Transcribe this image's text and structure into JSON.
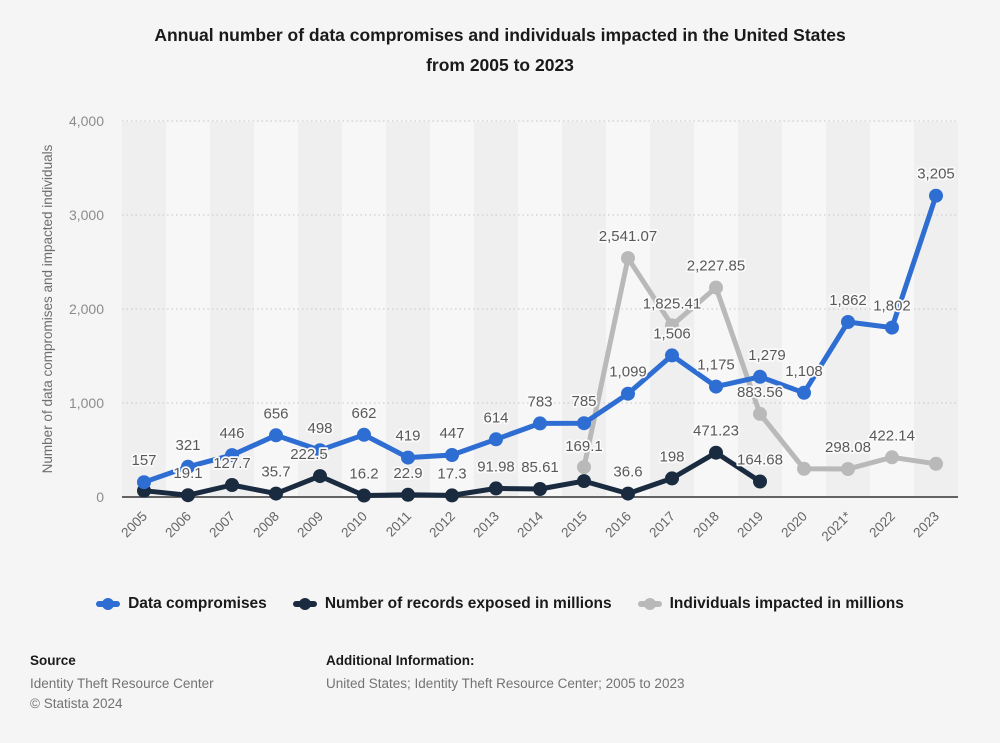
{
  "title": {
    "line1": "Annual number of data compromises and individuals impacted in the United States",
    "line2": "from 2005 to 2023"
  },
  "y_axis": {
    "label": "Number of data compromises and impacted individuals",
    "ticks": [
      "4,000",
      "3,000",
      "2,000",
      "1,000",
      "0"
    ]
  },
  "x_axis": {
    "categories": [
      "2005",
      "2006",
      "2007",
      "2008",
      "2009",
      "2010",
      "2011",
      "2012",
      "2013",
      "2014",
      "2015",
      "2016",
      "2017",
      "2018",
      "2019",
      "2020",
      "2021*",
      "2022",
      "2023"
    ]
  },
  "legend": {
    "items": [
      {
        "label": "Data compromises",
        "color": "#2e6dd2"
      },
      {
        "label": "Number of records exposed in millions",
        "color": "#1a2b40"
      },
      {
        "label": "Individuals impacted in millions",
        "color": "#b9b9b9"
      }
    ]
  },
  "footer": {
    "source_heading": "Source",
    "source_name": "Identity Theft Resource Center",
    "copyright": "© Statista 2024",
    "additional_heading": "Additional Information:",
    "additional_text": "United States; Identity Theft Resource Center; 2005 to 2023"
  },
  "chart_data": {
    "type": "line",
    "title": "Annual number of data compromises and individuals impacted in the United States from 2005 to 2023",
    "xlabel": "",
    "ylabel": "Number of data compromises and impacted individuals",
    "ylim": [
      0,
      4000
    ],
    "grid": true,
    "legend_position": "bottom",
    "categories": [
      "2005",
      "2006",
      "2007",
      "2008",
      "2009",
      "2010",
      "2011",
      "2012",
      "2013",
      "2014",
      "2015",
      "2016",
      "2017",
      "2018",
      "2019",
      "2020",
      "2021*",
      "2022",
      "2023"
    ],
    "series": [
      {
        "name": "Data compromises",
        "color": "#2e6dd2",
        "values": [
          157,
          321,
          446,
          656,
          498,
          662,
          419,
          447,
          614,
          783,
          785,
          1099,
          1506,
          1175,
          1279,
          1108,
          1862,
          1802,
          3205
        ],
        "labels": [
          "157",
          "321",
          "446",
          "656",
          "498",
          "662",
          "419",
          "447",
          "614",
          "783",
          "785",
          "1,099",
          "1,506",
          "1,175",
          "1,279",
          "1,108",
          "1,862",
          "1,802",
          "3,205"
        ]
      },
      {
        "name": "Number of records exposed in millions",
        "color": "#1a2b40",
        "values": [
          67,
          19.1,
          127.7,
          35.7,
          222.5,
          16.2,
          22.9,
          17.3,
          91.98,
          85.61,
          169.1,
          36.6,
          198,
          471.23,
          164.68,
          null,
          null,
          null,
          null
        ],
        "labels": [
          null,
          "19.1",
          "127.7",
          "35.7",
          "222.5",
          "16.2",
          "22.9",
          "17.3",
          "91.98",
          "85.61",
          "169.1",
          "36.6",
          "198",
          "471.23",
          "164.68",
          null,
          null,
          null,
          null
        ]
      },
      {
        "name": "Individuals impacted in millions",
        "color": "#b9b9b9",
        "values": [
          null,
          null,
          null,
          null,
          null,
          null,
          null,
          null,
          null,
          null,
          318,
          2541.07,
          1825.41,
          2227.85,
          883.56,
          300,
          298.08,
          422.14,
          353
        ],
        "labels": [
          null,
          null,
          null,
          null,
          null,
          null,
          null,
          null,
          null,
          null,
          null,
          "2,541.07",
          "1,825.41",
          "2,227.85",
          "883.56",
          null,
          "298.08",
          "422.14",
          null
        ]
      }
    ]
  }
}
